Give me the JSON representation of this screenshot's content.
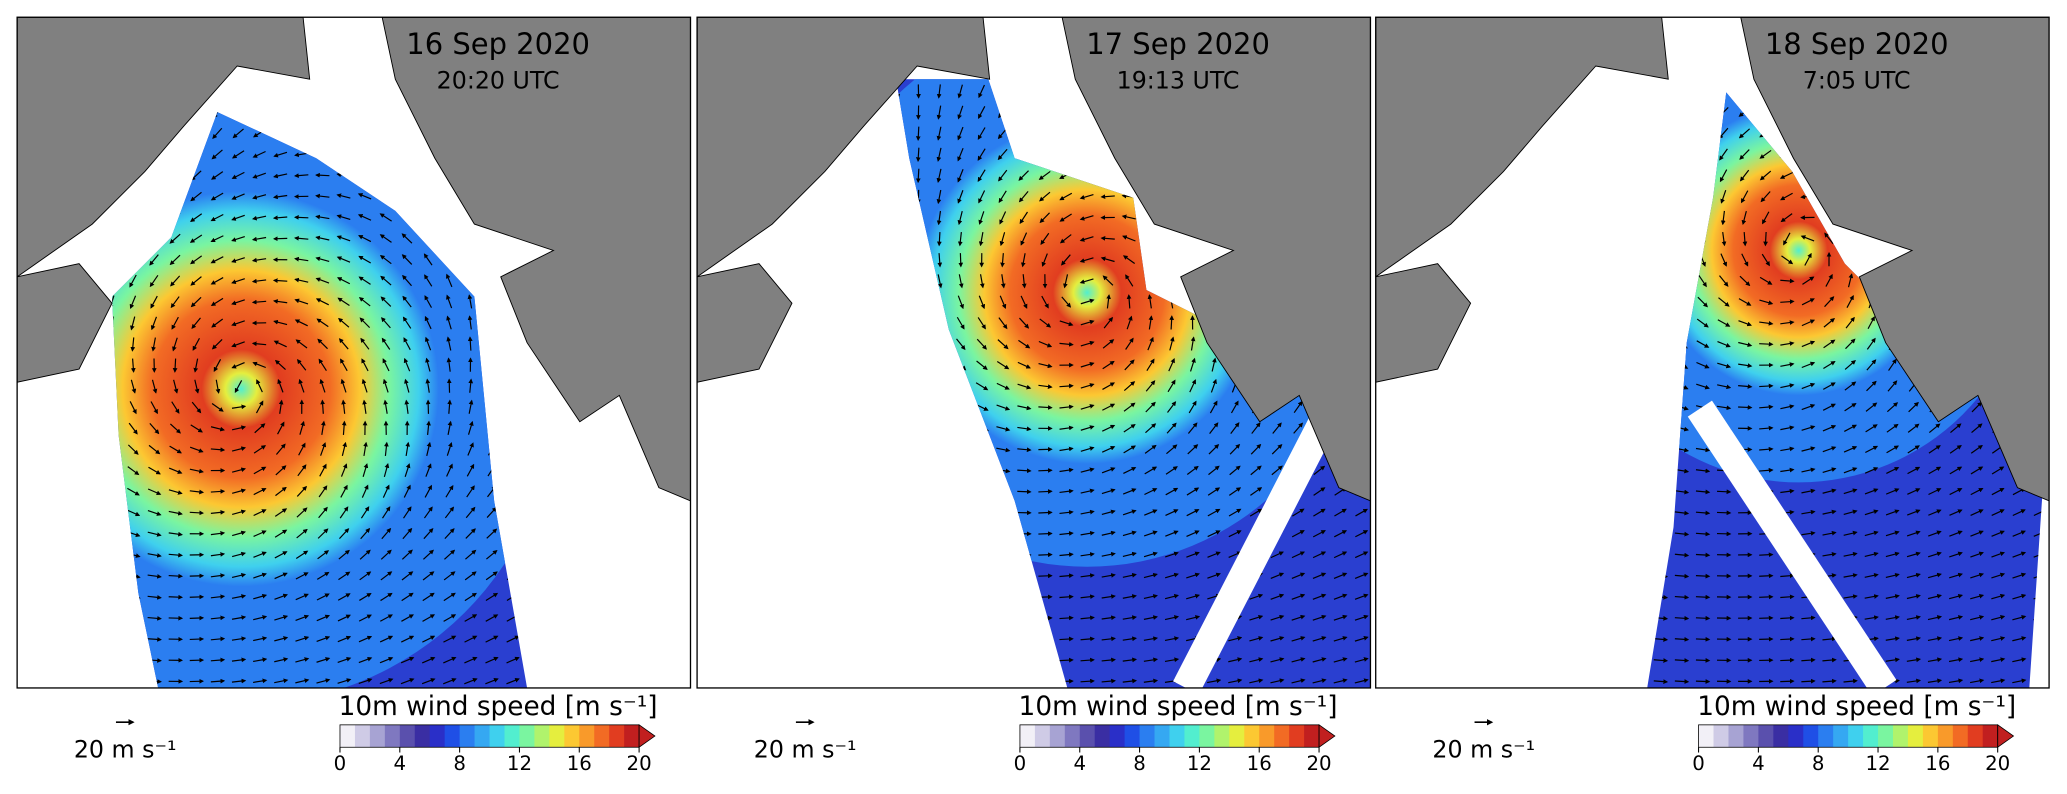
{
  "panels": [
    {
      "title": "16 Sep 2020",
      "subtitle": "20:20 UTC",
      "reference_arrow_label": "20 m s⁻¹",
      "colorbar": {
        "label": "10m wind speed [m s⁻¹]",
        "lim": [
          0,
          20
        ],
        "ticks": [
          0,
          4,
          8,
          12,
          16,
          20
        ]
      }
    },
    {
      "title": "17 Sep 2020",
      "subtitle": "19:13 UTC",
      "reference_arrow_label": "20 m s⁻¹",
      "colorbar": {
        "label": "10m wind speed [m s⁻¹]",
        "lim": [
          0,
          20
        ],
        "ticks": [
          0,
          4,
          8,
          12,
          16,
          20
        ]
      }
    },
    {
      "title": "18 Sep 2020",
      "subtitle": "7:05 UTC",
      "reference_arrow_label": "20 m s⁻¹",
      "colorbar": {
        "label": "10m wind speed [m s⁻¹]",
        "lim": [
          0,
          20
        ],
        "ticks": [
          0,
          4,
          8,
          12,
          16,
          20
        ]
      }
    }
  ],
  "colorbar_colors": [
    "#f2f0f7",
    "#cfcbe6",
    "#a7a3d3",
    "#7f78c0",
    "#5a50ad",
    "#3a2ea3",
    "#2a2fc8",
    "#1f4fe6",
    "#2b7ef0",
    "#35a8f2",
    "#3fd0ee",
    "#52eecf",
    "#7af5a0",
    "#b0f36c",
    "#e5ee3e",
    "#fcc832",
    "#f99a2a",
    "#f26b24",
    "#e13d20",
    "#c11f1f"
  ]
}
